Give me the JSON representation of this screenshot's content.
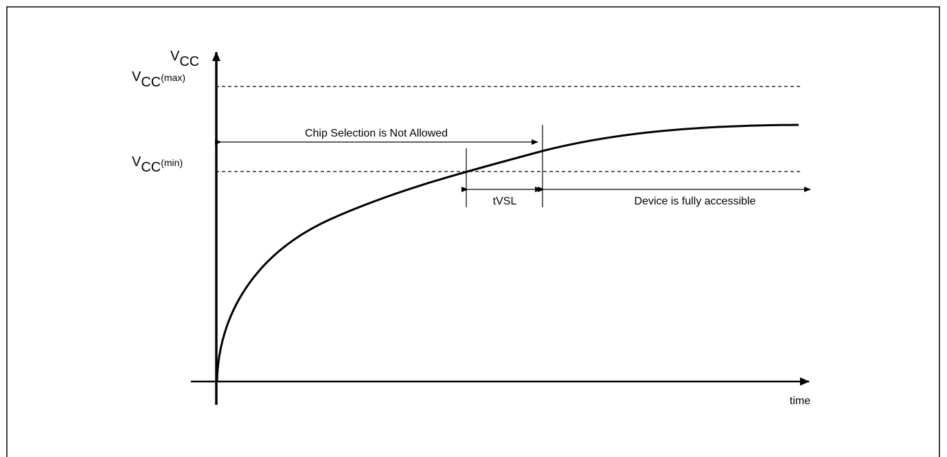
{
  "colors": {
    "background": "#ffffff",
    "ink": "#000000"
  },
  "y_axis": {
    "symbol": "V",
    "subscript": "CC"
  },
  "x_axis": {
    "label": "time"
  },
  "levels": {
    "max": {
      "symbol": "V",
      "subscript": "CC",
      "suffix": "(max)"
    },
    "min": {
      "symbol": "V",
      "subscript": "CC",
      "suffix": "(min)"
    }
  },
  "annotations": {
    "chip_selection": "Chip Selection is Not Allowed",
    "tvsl": "tVSL",
    "device_accessible": "Device is fully accessible"
  }
}
